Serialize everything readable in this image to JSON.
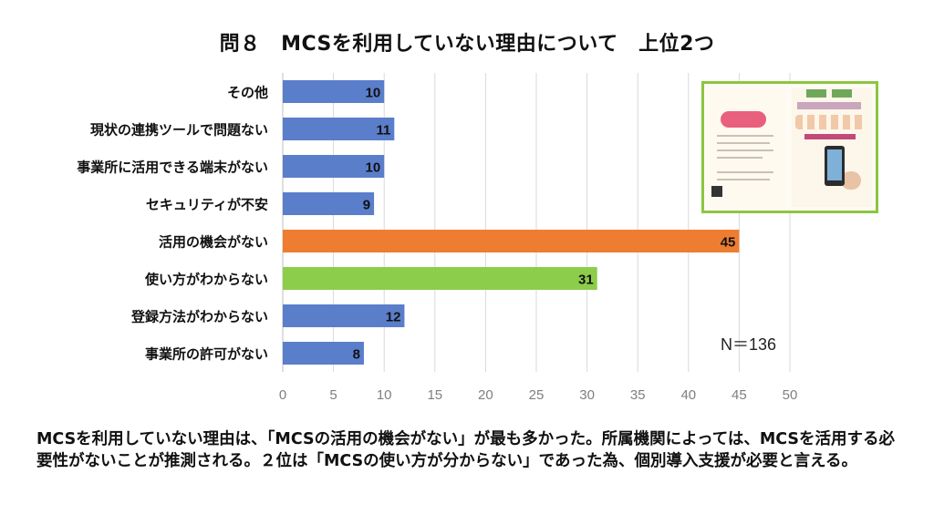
{
  "title": "問８　MCSを利用していない理由について　上位2つ",
  "note": "N＝136",
  "caption": "MCSを利用していない理由は、「MCSの活用の機会がない」が最も多かった。所属機関によっては、MCSを活用する必要性がないことが推測される。２位は「MCSの使い方が分からない」であった為、個別導入支援が必要と言える。",
  "colors": {
    "default": "#5b7ecb",
    "first": "#ee7d31",
    "second": "#8ccd4b",
    "grid": "#d9d9d9"
  },
  "chart_data": {
    "type": "bar",
    "orientation": "horizontal",
    "title": "問８　MCSを利用していない理由について　上位2つ",
    "categories": [
      "その他",
      "現状の連携ツールで問題ない",
      "事業所に活用できる端末がない",
      "セキュリティが不安",
      "活用の機会がない",
      "使い方がわからない",
      "登録方法がわからない",
      "事業所の許可がない"
    ],
    "values": [
      10,
      11,
      10,
      9,
      45,
      31,
      12,
      8
    ],
    "highlight": {
      "活用の機会がない": "#ee7d31",
      "使い方がわからない": "#8ccd4b"
    },
    "xlim": [
      0,
      50
    ],
    "xticks": [
      0,
      5,
      10,
      15,
      20,
      25,
      30,
      35,
      40,
      45,
      50
    ],
    "grid": true,
    "data_labels": true
  }
}
